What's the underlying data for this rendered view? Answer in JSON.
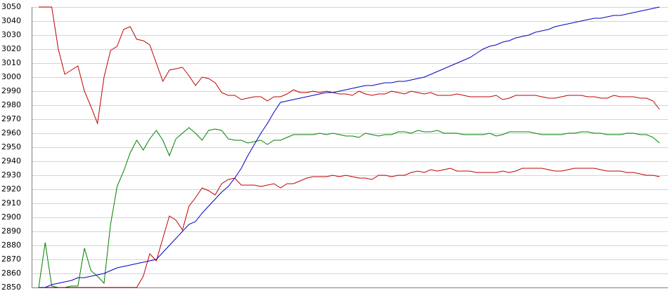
{
  "chart_data": {
    "type": "line",
    "ylim": [
      2850,
      3050
    ],
    "yticks": [
      2850,
      2860,
      2870,
      2880,
      2890,
      2900,
      2910,
      2920,
      2930,
      2940,
      2950,
      2960,
      2970,
      2980,
      2990,
      3000,
      3010,
      3020,
      3030,
      3040,
      3050
    ],
    "grid": true,
    "series": [
      {
        "color": "#c00000",
        "values": [
          3050,
          3050,
          3050,
          3020,
          3002,
          3005,
          3008,
          2990,
          2979,
          2967,
          3000,
          3019,
          3022,
          3034,
          3036,
          3027,
          3026,
          3023,
          3010,
          2997,
          3005,
          3006,
          3007,
          3001,
          2994,
          3000,
          2999,
          2996,
          2989,
          2987,
          2987,
          2984,
          2985,
          2986,
          2986,
          2983,
          2986,
          2986,
          2988,
          2991,
          2989,
          2989,
          2990,
          2989,
          2990,
          2989,
          2988,
          2988,
          2987,
          2990,
          2988,
          2987,
          2988,
          2988,
          2990,
          2989,
          2988,
          2990,
          2989,
          2988,
          2989,
          2987,
          2987,
          2987,
          2988,
          2987,
          2986,
          2986,
          2986,
          2986,
          2987,
          2984,
          2985,
          2987,
          2987,
          2987,
          2987,
          2986,
          2985,
          2985,
          2986,
          2987,
          2987,
          2987,
          2986,
          2986,
          2985,
          2985,
          2987,
          2986,
          2986,
          2986,
          2985,
          2985,
          2983,
          2977
        ]
      },
      {
        "color": "#008000",
        "values": [
          2850,
          2882,
          2851,
          2850,
          2850,
          2851,
          2851,
          2878,
          2862,
          2858,
          2853,
          2895,
          2922,
          2933,
          2946,
          2955,
          2948,
          2956,
          2962,
          2955,
          2944,
          2956,
          2960,
          2964,
          2960,
          2955,
          2962,
          2963,
          2962,
          2956,
          2955,
          2955,
          2953,
          2954,
          2955,
          2952,
          2955,
          2955,
          2957,
          2959,
          2959,
          2959,
          2959,
          2960,
          2959,
          2960,
          2959,
          2958,
          2958,
          2957,
          2960,
          2959,
          2958,
          2959,
          2959,
          2961,
          2961,
          2960,
          2962,
          2961,
          2961,
          2962,
          2960,
          2960,
          2960,
          2959,
          2959,
          2959,
          2959,
          2960,
          2958,
          2959,
          2961,
          2961,
          2961,
          2961,
          2960,
          2959,
          2959,
          2959,
          2959,
          2960,
          2960,
          2961,
          2961,
          2960,
          2960,
          2959,
          2959,
          2959,
          2960,
          2960,
          2959,
          2959,
          2957,
          2953
        ]
      },
      {
        "color": "#c00000",
        "values": [
          2850,
          2850,
          2850,
          2850,
          2850,
          2850,
          2850,
          2850,
          2850,
          2850,
          2850,
          2850,
          2850,
          2850,
          2850,
          2850,
          2858,
          2874,
          2869,
          2885,
          2901,
          2898,
          2891,
          2908,
          2914,
          2921,
          2919,
          2916,
          2924,
          2927,
          2928,
          2923,
          2923,
          2923,
          2922,
          2923,
          2924,
          2921,
          2924,
          2924,
          2926,
          2928,
          2929,
          2929,
          2929,
          2930,
          2929,
          2930,
          2929,
          2928,
          2928,
          2927,
          2930,
          2930,
          2929,
          2930,
          2930,
          2932,
          2933,
          2932,
          2934,
          2933,
          2934,
          2935,
          2933,
          2933,
          2933,
          2932,
          2932,
          2932,
          2932,
          2933,
          2932,
          2933,
          2935,
          2935,
          2935,
          2935,
          2934,
          2933,
          2933,
          2934,
          2935,
          2935,
          2935,
          2935,
          2934,
          2933,
          2933,
          2933,
          2932,
          2932,
          2931,
          2930,
          2930,
          2929
        ]
      },
      {
        "color": "#0000c0",
        "values": [
          2850,
          2850,
          2852,
          2853,
          2854,
          2855,
          2857,
          2857,
          2858,
          2859,
          2860,
          2862,
          2864,
          2865,
          2866,
          2867,
          2868,
          2869,
          2870,
          2875,
          2880,
          2885,
          2890,
          2895,
          2897,
          2903,
          2908,
          2913,
          2918,
          2922,
          2928,
          2935,
          2944,
          2952,
          2960,
          2967,
          2975,
          2982,
          2983,
          2984,
          2985,
          2986,
          2987,
          2988,
          2989,
          2989,
          2990,
          2991,
          2992,
          2993,
          2994,
          2994,
          2995,
          2996,
          2996,
          2997,
          2997,
          2998,
          2999,
          3000,
          3002,
          3004,
          3006,
          3008,
          3010,
          3012,
          3014,
          3017,
          3020,
          3022,
          3023,
          3025,
          3026,
          3028,
          3029,
          3030,
          3032,
          3033,
          3034,
          3036,
          3037,
          3038,
          3039,
          3040,
          3041,
          3042,
          3042,
          3043,
          3044,
          3044,
          3045,
          3046,
          3047,
          3048,
          3049,
          3050
        ]
      }
    ]
  }
}
